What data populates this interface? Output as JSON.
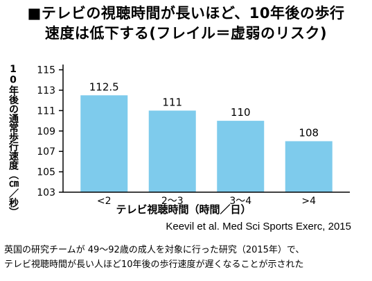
{
  "title_line1": "■テレビの視聴時間が長いほど、10年後の歩行",
  "title_line2": "速度は低下する(フレイル＝虚弱のリスク)",
  "source": "Keevil et al. Med Sci Sports Exerc, 2015",
  "caption_line1": "英国の研究チームが 49～92歳の成人を対象に行った研究（2015年）で、",
  "caption_line2": "テレビ視聴時間が長い人ほど10年後の歩行速度が遅くなることが示された",
  "chart_data": {
    "type": "bar",
    "xlabel": "テレビ視聴時間（時間／日）",
    "ylabel": "10年後の通常歩行速度（㎝／秒）",
    "categories": [
      "<2",
      "2～3",
      "3～4",
      ">4"
    ],
    "values": [
      112.5,
      111,
      110,
      108
    ],
    "data_labels": [
      "112.5",
      "111",
      "110",
      "108"
    ],
    "yticks": [
      "115",
      "113",
      "111",
      "109",
      "107",
      "105",
      "103"
    ],
    "ylim": [
      103,
      116
    ],
    "bar_color": "#7ecbec",
    "grid": false
  }
}
